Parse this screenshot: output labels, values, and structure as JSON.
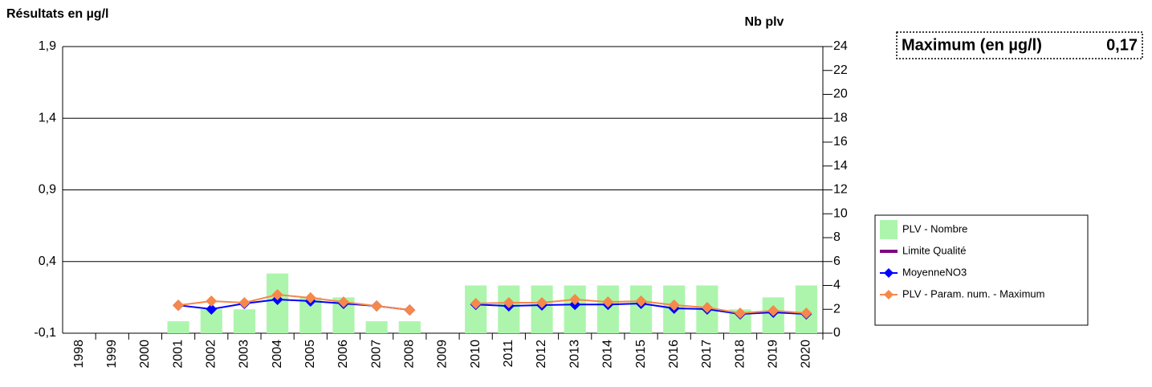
{
  "chart_data": {
    "type": "bar",
    "y_label": "Résultats en µg/l",
    "y2_label": "Nb plv",
    "annotation": {
      "label": "Maximum (en µg/l)",
      "value": "0,17"
    },
    "categories": [
      "1998",
      "1999",
      "2000",
      "2001",
      "2002",
      "2003",
      "2004",
      "2005",
      "2006",
      "2007",
      "2008",
      "2009",
      "2010",
      "2011",
      "2012",
      "2013",
      "2014",
      "2015",
      "2016",
      "2017",
      "2018",
      "2019",
      "2020"
    ],
    "ylim": [
      -0.1,
      1.9
    ],
    "yticks": [
      {
        "value": -0.1,
        "label": "-0,1"
      },
      {
        "value": 0.4,
        "label": "0,4"
      },
      {
        "value": 0.9,
        "label": "0,9"
      },
      {
        "value": 1.4,
        "label": "1,4"
      },
      {
        "value": 1.9,
        "label": "1,9"
      }
    ],
    "y2lim": [
      0,
      24
    ],
    "y2ticks": [
      0,
      2,
      4,
      6,
      8,
      10,
      12,
      14,
      16,
      18,
      20,
      22,
      24
    ],
    "grid": true,
    "series": [
      {
        "name": "PLV - Nombre",
        "type": "bar",
        "axis": "y2",
        "color": "#adf5ad",
        "values": [
          null,
          null,
          null,
          1,
          2,
          2,
          5,
          3,
          3,
          1,
          1,
          null,
          4,
          4,
          4,
          4,
          4,
          4,
          4,
          4,
          2,
          3,
          4
        ]
      },
      {
        "name": "Limite Qualité",
        "type": "line",
        "color": "#800080",
        "values": [
          null,
          null,
          null,
          null,
          null,
          null,
          null,
          null,
          null,
          null,
          null,
          null,
          null,
          null,
          null,
          null,
          null,
          null,
          null,
          null,
          null,
          null,
          null
        ]
      },
      {
        "name": "MoyenneNO3",
        "type": "line",
        "color": "#0000ff",
        "values": [
          null,
          null,
          null,
          0.095,
          0.068,
          0.107,
          0.135,
          0.124,
          0.107,
          0.09,
          0.062,
          null,
          0.1,
          0.09,
          0.096,
          0.1,
          0.1,
          0.107,
          0.074,
          0.068,
          0.034,
          0.046,
          0.034
        ]
      },
      {
        "name": "PLV - Param. num. - Maximum",
        "type": "line",
        "color": "#f5884a",
        "values": [
          null,
          null,
          null,
          0.095,
          0.124,
          0.113,
          0.169,
          0.147,
          0.118,
          0.09,
          0.062,
          null,
          0.107,
          0.113,
          0.113,
          0.135,
          0.118,
          0.124,
          0.096,
          0.079,
          0.04,
          0.057,
          0.04
        ]
      }
    ]
  }
}
